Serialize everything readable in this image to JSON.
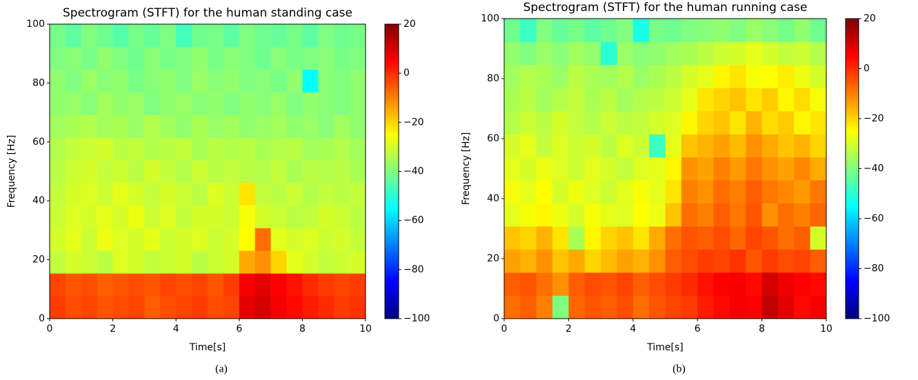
{
  "chart_data": [
    {
      "type": "heatmap",
      "title": "Spectrogram (STFT) for the human standing case",
      "xlabel": "Time[s]",
      "ylabel": "Frequency [Hz]",
      "caption": "(a)",
      "colormap": "jet",
      "x": [
        0,
        0.5,
        1,
        1.5,
        2,
        2.5,
        3,
        3.5,
        4,
        4.5,
        5,
        5.5,
        6,
        6.5,
        7,
        7.5,
        8,
        8.5,
        9,
        9.5,
        10
      ],
      "y": [
        0,
        7.7,
        15.4,
        23.1,
        30.8,
        38.5,
        46.2,
        53.8,
        61.5,
        69.2,
        76.9,
        84.6,
        92.3,
        100
      ],
      "values": [
        [
          -2,
          -4,
          -3,
          -5,
          -4,
          -3,
          -6,
          -4,
          -3,
          -2,
          -4,
          -3,
          8,
          10,
          6,
          4,
          2,
          0,
          -2,
          -1
        ],
        [
          -3,
          -5,
          -4,
          -6,
          -5,
          -4,
          -5,
          -3,
          -4,
          -3,
          -5,
          -2,
          6,
          8,
          5,
          3,
          0,
          -2,
          -3,
          -2
        ],
        [
          -32,
          -30,
          -31,
          -33,
          -29,
          -30,
          -32,
          -31,
          -30,
          -33,
          -31,
          -30,
          -15,
          -12,
          -20,
          -28,
          -30,
          -32,
          -31,
          -30
        ],
        [
          -30,
          -28,
          -31,
          -27,
          -29,
          -30,
          -28,
          -31,
          -30,
          -29,
          -31,
          -30,
          -25,
          -8,
          -28,
          -30,
          -29,
          -31,
          -30,
          -32
        ],
        [
          -31,
          -29,
          -30,
          -28,
          -30,
          -27,
          -31,
          -29,
          -32,
          -30,
          -30,
          -31,
          -26,
          -30,
          -31,
          -33,
          -32,
          -30,
          -31,
          -33
        ],
        [
          -32,
          -30,
          -29,
          -31,
          -28,
          -30,
          -32,
          -30,
          -31,
          -33,
          -29,
          -31,
          -22,
          -32,
          -33,
          -31,
          -34,
          -32,
          -33,
          -32
        ],
        [
          -33,
          -31,
          -30,
          -32,
          -31,
          -33,
          -30,
          -32,
          -34,
          -31,
          -33,
          -32,
          -33,
          -34,
          -32,
          -35,
          -33,
          -34,
          -33,
          -35
        ],
        [
          -34,
          -32,
          -31,
          -30,
          -33,
          -32,
          -34,
          -33,
          -32,
          -35,
          -33,
          -34,
          -33,
          -35,
          -34,
          -33,
          -36,
          -35,
          -34,
          -36
        ],
        [
          -36,
          -35,
          -34,
          -36,
          -35,
          -37,
          -34,
          -36,
          -38,
          -35,
          -37,
          -36,
          -38,
          -37,
          -36,
          -38,
          -37,
          -39,
          -36,
          -38
        ],
        [
          -38,
          -37,
          -39,
          -36,
          -38,
          -37,
          -40,
          -38,
          -37,
          -39,
          -38,
          -40,
          -38,
          -39,
          -37,
          -40,
          -38,
          -39,
          -40,
          -38
        ],
        [
          -38,
          -40,
          -37,
          -39,
          -38,
          -41,
          -39,
          -38,
          -40,
          -37,
          -39,
          -38,
          -40,
          -39,
          -41,
          -38,
          -55,
          -39,
          -40,
          -38
        ],
        [
          -40,
          -39,
          -41,
          -38,
          -40,
          -42,
          -39,
          -41,
          -40,
          -38,
          -41,
          -39,
          -40,
          -42,
          -39,
          -41,
          -40,
          -39,
          -41,
          -40
        ],
        [
          -41,
          -44,
          -40,
          -42,
          -45,
          -41,
          -43,
          -40,
          -47,
          -42,
          -41,
          -44,
          -40,
          -42,
          -43,
          -41,
          -44,
          -40,
          -42,
          -41
        ]
      ],
      "xlim": [
        0,
        10
      ],
      "xticks": [
        0,
        2,
        4,
        6,
        8,
        10
      ],
      "ylim": [
        0,
        100
      ],
      "yticks": [
        0,
        20,
        40,
        60,
        80,
        100
      ],
      "zlim": [
        -100,
        20
      ],
      "zticks": [
        {
          "value": -100,
          "label": "−100"
        },
        {
          "value": -80,
          "label": "−80"
        },
        {
          "value": -60,
          "label": "−60"
        },
        {
          "value": -40,
          "label": "−40"
        },
        {
          "value": -20,
          "label": "−20"
        },
        0,
        20
      ]
    },
    {
      "type": "heatmap",
      "title": "Spectrogram (STFT) for the human running case",
      "xlabel": "Time[s]",
      "ylabel": "Frequency [Hz]",
      "caption": "(b)",
      "colormap": "jet",
      "x": [
        0,
        0.5,
        1,
        1.5,
        2,
        2.5,
        3,
        3.5,
        4,
        4.5,
        5,
        5.5,
        6,
        6.5,
        7,
        7.5,
        8,
        8.5,
        9,
        9.5,
        10
      ],
      "y": [
        0,
        7.7,
        15.4,
        23.1,
        30.8,
        38.5,
        46.2,
        53.8,
        61.5,
        69.2,
        76.9,
        84.6,
        92.3,
        100
      ],
      "values": [
        [
          -8,
          -6,
          -10,
          -40,
          -7,
          -5,
          -6,
          -4,
          -8,
          -5,
          -3,
          -2,
          2,
          4,
          6,
          5,
          12,
          8,
          4,
          6
        ],
        [
          -6,
          -5,
          -8,
          -12,
          -6,
          -4,
          -5,
          -3,
          -6,
          -4,
          -2,
          0,
          3,
          5,
          6,
          4,
          10,
          7,
          5,
          4
        ],
        [
          -14,
          -16,
          -12,
          -18,
          -15,
          -20,
          -17,
          -14,
          -16,
          -12,
          -6,
          -4,
          -2,
          -3,
          -1,
          -5,
          -2,
          -4,
          -3,
          -6
        ],
        [
          -18,
          -20,
          -16,
          -22,
          -35,
          -24,
          -20,
          -18,
          -22,
          -15,
          -8,
          -5,
          -6,
          -4,
          -7,
          -3,
          -5,
          -8,
          -6,
          -30
        ],
        [
          -28,
          -26,
          -24,
          -27,
          -30,
          -26,
          -28,
          -29,
          -25,
          -27,
          -18,
          -8,
          -10,
          -6,
          -9,
          -5,
          -12,
          -8,
          -10,
          -7
        ],
        [
          -26,
          -28,
          -25,
          -30,
          -27,
          -29,
          -31,
          -28,
          -26,
          -28,
          -22,
          -10,
          -12,
          -8,
          -10,
          -6,
          -9,
          -11,
          -13,
          -9
        ],
        [
          -28,
          -30,
          -27,
          -29,
          -31,
          -28,
          -30,
          -32,
          -29,
          -28,
          -24,
          -12,
          -14,
          -10,
          -13,
          -9,
          -12,
          -14,
          -11,
          -15
        ],
        [
          -30,
          -28,
          -32,
          -29,
          -31,
          -30,
          -33,
          -29,
          -31,
          -48,
          -28,
          -18,
          -16,
          -14,
          -17,
          -12,
          -15,
          -18,
          -16,
          -20
        ],
        [
          -34,
          -31,
          -33,
          -30,
          -32,
          -34,
          -31,
          -33,
          -32,
          -30,
          -29,
          -24,
          -20,
          -18,
          -22,
          -16,
          -21,
          -19,
          -24,
          -22
        ],
        [
          -35,
          -33,
          -36,
          -34,
          -32,
          -35,
          -33,
          -36,
          -34,
          -33,
          -31,
          -28,
          -22,
          -20,
          -18,
          -22,
          -19,
          -24,
          -21,
          -26
        ],
        [
          -36,
          -34,
          -35,
          -37,
          -33,
          -35,
          -36,
          -34,
          -37,
          -35,
          -33,
          -30,
          -28,
          -24,
          -22,
          -26,
          -25,
          -23,
          -27,
          -30
        ],
        [
          -38,
          -40,
          -37,
          -39,
          -36,
          -38,
          -50,
          -37,
          -39,
          -38,
          -36,
          -35,
          -33,
          -31,
          -30,
          -28,
          -30,
          -32,
          -31,
          -34
        ],
        [
          -42,
          -48,
          -40,
          -43,
          -41,
          -44,
          -42,
          -40,
          -52,
          -41,
          -42,
          -40,
          -39,
          -38,
          -40,
          -37,
          -39,
          -41,
          -38,
          -42
        ]
      ],
      "xlim": [
        0,
        10
      ],
      "xticks": [
        0,
        2,
        4,
        6,
        8,
        10
      ],
      "ylim": [
        0,
        100
      ],
      "yticks": [
        0,
        20,
        40,
        60,
        80,
        100
      ],
      "zlim": [
        -100,
        20
      ],
      "zticks": [
        {
          "value": -100,
          "label": "−100"
        },
        {
          "value": -80,
          "label": "−80"
        },
        {
          "value": -60,
          "label": "−60"
        },
        {
          "value": -40,
          "label": "−40"
        },
        {
          "value": -20,
          "label": "−20"
        },
        0,
        20
      ]
    }
  ]
}
